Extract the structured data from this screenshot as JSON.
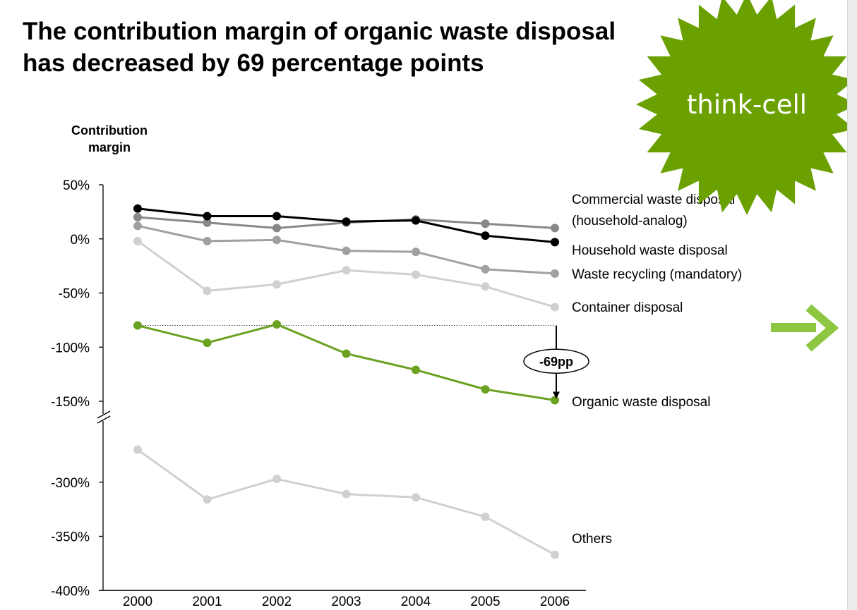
{
  "title": {
    "line1": "The contribution margin of organic waste disposal",
    "line2": "has decreased by 69 percentage points"
  },
  "logo": {
    "text": "think-cell",
    "color": "#6aa100",
    "icon": "starburst-badge"
  },
  "next_arrow": {
    "icon": "arrow-right-icon",
    "color": "#8dc63f"
  },
  "chart_data": {
    "type": "line",
    "ylabel": "Contribution margin",
    "x": [
      "2000",
      "2001",
      "2002",
      "2003",
      "2004",
      "2005",
      "2006"
    ],
    "y_ticks": [
      "50%",
      "0%",
      "-50%",
      "-100%",
      "-150%",
      "-300%",
      "-350%",
      "-400%"
    ],
    "axis_break": {
      "from": -150,
      "to": -250
    },
    "ylim": [
      -400,
      50
    ],
    "grid": false,
    "series": [
      {
        "name": "Commercial waste disposal (household-analog)",
        "label_lines": [
          "Commercial waste disposal",
          "(household-analog)"
        ],
        "color": "#888888",
        "values": [
          20,
          15,
          10,
          15,
          18,
          14,
          10
        ]
      },
      {
        "name": "Household waste disposal",
        "label_lines": [
          "Household waste disposal"
        ],
        "color": "#000000",
        "values": [
          28,
          21,
          21,
          16,
          17,
          3,
          -3
        ]
      },
      {
        "name": "Waste recycling (mandatory)",
        "label_lines": [
          "Waste recycling (mandatory)"
        ],
        "color": "#a0a0a0",
        "values": [
          12,
          -2,
          -1,
          -11,
          -12,
          -28,
          -32
        ]
      },
      {
        "name": "Container disposal",
        "label_lines": [
          "Container disposal"
        ],
        "color": "#d0d0d0",
        "values": [
          -2,
          -48,
          -42,
          -29,
          -33,
          -44,
          -63
        ]
      },
      {
        "name": "Organic waste disposal",
        "label_lines": [
          "Organic waste disposal"
        ],
        "color": "#6aa121",
        "values": [
          -80,
          -96,
          -79,
          -106,
          -121,
          -139,
          -149
        ]
      },
      {
        "name": "Others",
        "label_lines": [
          "Others"
        ],
        "color": "#d0d0d0",
        "values": [
          -270,
          -316,
          -297,
          -311,
          -314,
          -332,
          -367
        ]
      }
    ],
    "annotation": {
      "text": "-69pp",
      "series": "Organic waste disposal",
      "from_value": -80,
      "to_value": -149,
      "at_x": "2006"
    }
  }
}
